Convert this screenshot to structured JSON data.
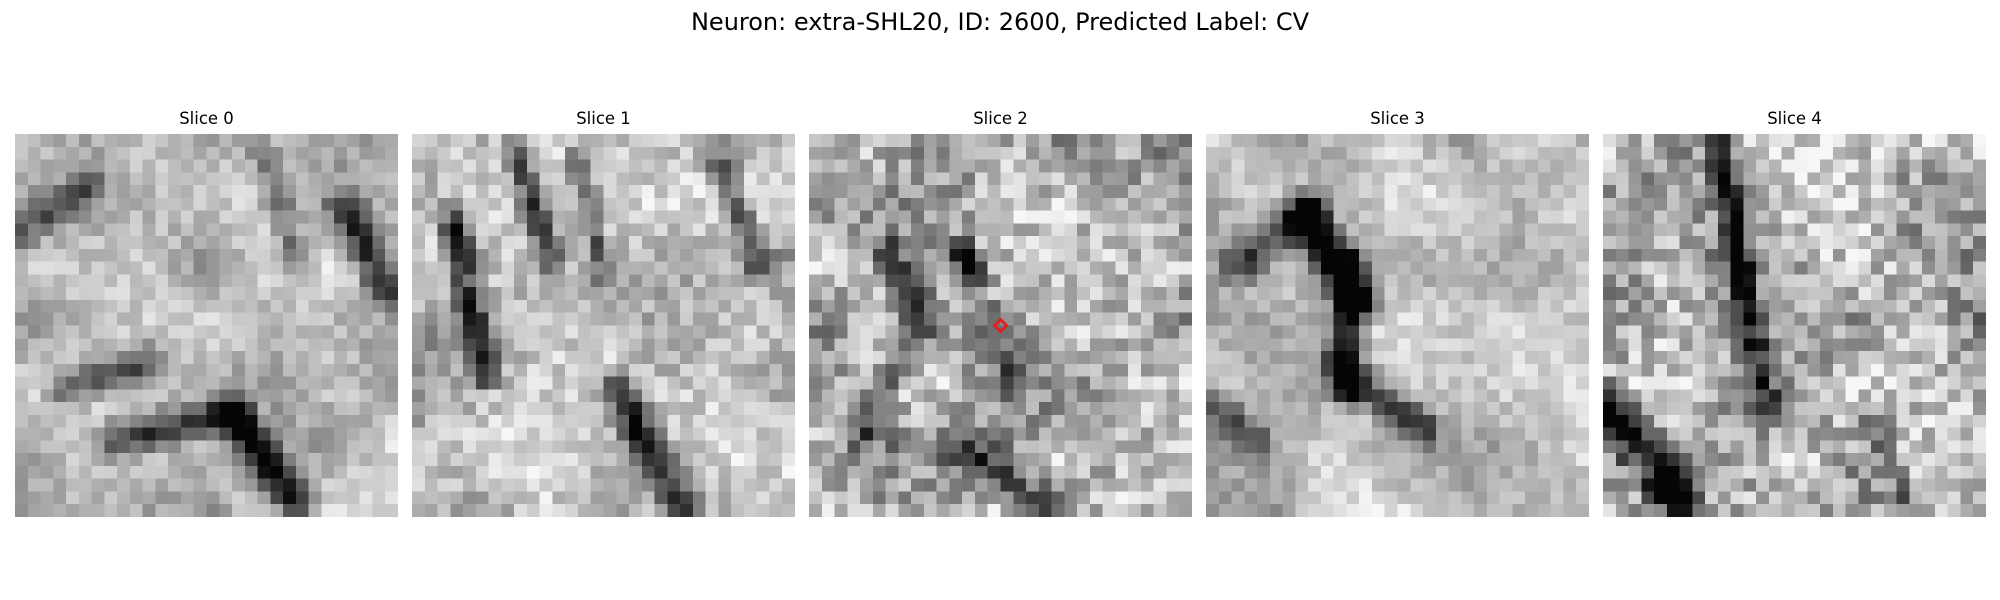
{
  "figure": {
    "title": "Neuron: extra-SHL20, ID: 2600, Predicted Label: CV"
  },
  "panels": [
    {
      "title": "Slice 0"
    },
    {
      "title": "Slice 1"
    },
    {
      "title": "Slice 2"
    },
    {
      "title": "Slice 3"
    },
    {
      "title": "Slice 4"
    }
  ],
  "grid_size": 30,
  "colormap": "gray",
  "marker": {
    "slice_index": 2,
    "color": "#e02020",
    "shape": "diamond",
    "position_cell": [
      15,
      15
    ]
  }
}
